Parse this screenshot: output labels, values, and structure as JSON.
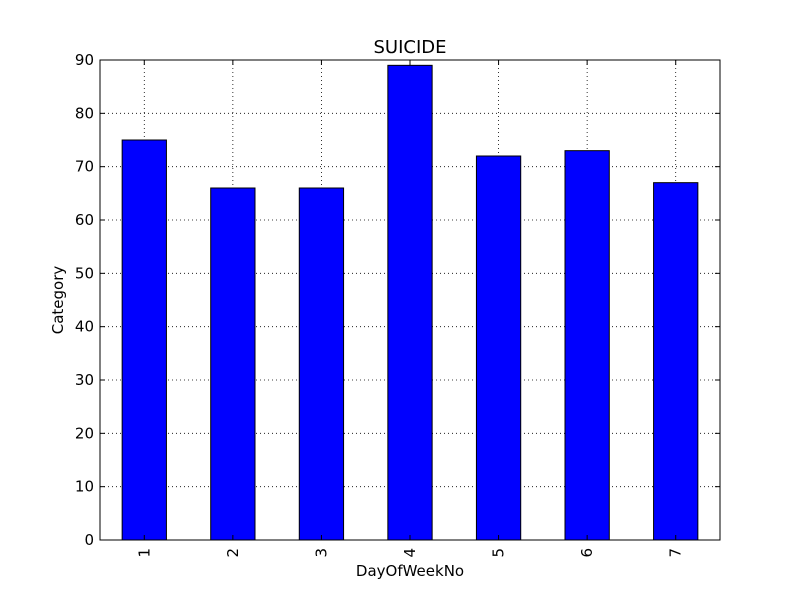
{
  "chart_data": {
    "type": "bar",
    "title": "SUICIDE",
    "xlabel": "DayOfWeekNo",
    "ylabel": "Category",
    "categories": [
      "1",
      "2",
      "3",
      "4",
      "5",
      "6",
      "7"
    ],
    "values": [
      75,
      66,
      66,
      89,
      72,
      73,
      67
    ],
    "ylim": [
      0,
      90
    ],
    "yticks": [
      0,
      10,
      20,
      30,
      40,
      50,
      60,
      70,
      80,
      90
    ],
    "grid": true,
    "grid_style": "dotted",
    "bar_color": "#0000ff",
    "bar_edge_color": "#000000",
    "x_tick_rotation": "vertical"
  }
}
